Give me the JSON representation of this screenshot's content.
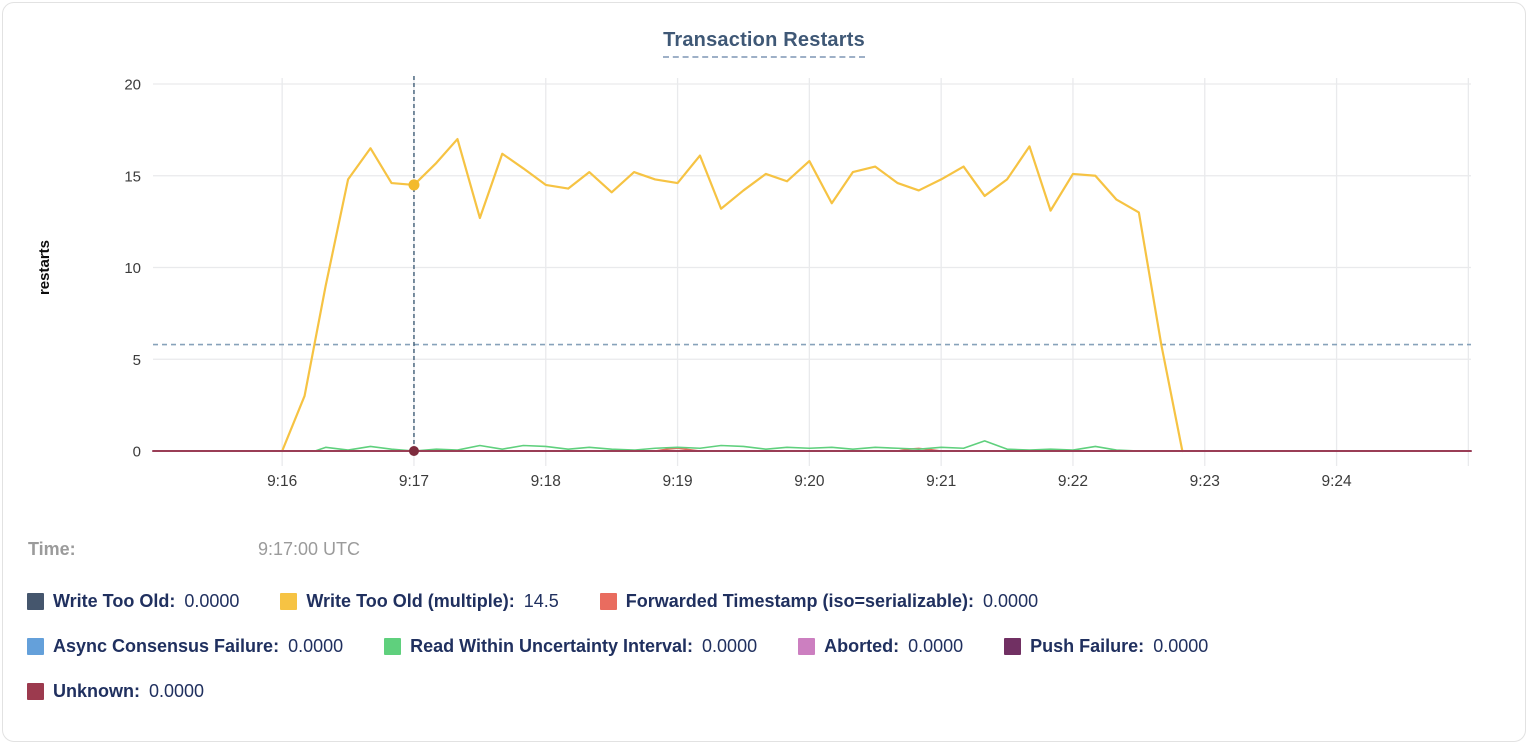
{
  "chart_data": {
    "type": "line",
    "title": "Transaction Restarts",
    "ylabel": "restarts",
    "x_unit": "time of day UTC, expressed as minutes after 9:00",
    "axis": {
      "xlim": [
        15.02,
        25.02
      ],
      "ylim": [
        0,
        20.45
      ],
      "grid": true,
      "legend_position": "bottom",
      "xticks": [
        {
          "x": 16,
          "label": "9:16"
        },
        {
          "x": 17,
          "label": "9:17"
        },
        {
          "x": 18,
          "label": "9:18"
        },
        {
          "x": 19,
          "label": "9:19"
        },
        {
          "x": 20,
          "label": "9:20"
        },
        {
          "x": 21,
          "label": "9:21"
        },
        {
          "x": 22,
          "label": "9:22"
        },
        {
          "x": 23,
          "label": "9:23"
        },
        {
          "x": 24,
          "label": "9:24"
        },
        {
          "x": 25,
          "label": ""
        }
      ],
      "yticks": [
        {
          "y": 0,
          "label": "0"
        },
        {
          "y": 5,
          "label": "5"
        },
        {
          "y": 10,
          "label": "10"
        },
        {
          "y": 15,
          "label": "15"
        },
        {
          "y": 20,
          "label": "20"
        }
      ]
    },
    "threshold_line": {
      "y": 5.8,
      "style": "dashed",
      "color": "#87a2ba"
    },
    "crosshair": {
      "x": 17,
      "time": "9:17:00 UTC",
      "color": "#3f5d77",
      "style": "dashed"
    },
    "highlight_points": [
      {
        "series": "Write Too Old (multiple)",
        "x": 17,
        "y": 14.5,
        "color": "#f3ba2c"
      },
      {
        "series": "Unknown",
        "x": 17,
        "y": 0,
        "color": "#7d2b3d"
      }
    ],
    "series": [
      {
        "name": "Write Too Old",
        "color": "#45566d",
        "width": 1.5,
        "points": [
          [
            15.02,
            0
          ],
          [
            25.02,
            0
          ]
        ]
      },
      {
        "name": "Write Too Old (multiple)",
        "color": "#f6c343",
        "width": 2.2,
        "points": [
          [
            16,
            0
          ],
          [
            16.17,
            3
          ],
          [
            16.33,
            9
          ],
          [
            16.5,
            14.8
          ],
          [
            16.67,
            16.5
          ],
          [
            16.83,
            14.6
          ],
          [
            17,
            14.5
          ],
          [
            17.17,
            15.7
          ],
          [
            17.33,
            17
          ],
          [
            17.5,
            12.7
          ],
          [
            17.67,
            16.2
          ],
          [
            17.83,
            15.4
          ],
          [
            18,
            14.5
          ],
          [
            18.17,
            14.3
          ],
          [
            18.33,
            15.2
          ],
          [
            18.5,
            14.1
          ],
          [
            18.67,
            15.2
          ],
          [
            18.83,
            14.8
          ],
          [
            19,
            14.6
          ],
          [
            19.17,
            16.1
          ],
          [
            19.33,
            13.2
          ],
          [
            19.5,
            14.2
          ],
          [
            19.67,
            15.1
          ],
          [
            19.83,
            14.7
          ],
          [
            20,
            15.8
          ],
          [
            20.17,
            13.5
          ],
          [
            20.33,
            15.2
          ],
          [
            20.5,
            15.5
          ],
          [
            20.67,
            14.6
          ],
          [
            20.83,
            14.2
          ],
          [
            21,
            14.8
          ],
          [
            21.17,
            15.5
          ],
          [
            21.33,
            13.9
          ],
          [
            21.5,
            14.8
          ],
          [
            21.67,
            16.6
          ],
          [
            21.83,
            13.1
          ],
          [
            22,
            15.1
          ],
          [
            22.17,
            15
          ],
          [
            22.33,
            13.7
          ],
          [
            22.5,
            13
          ],
          [
            22.67,
            5.8
          ],
          [
            22.83,
            0
          ]
        ]
      },
      {
        "name": "Forwarded Timestamp (iso=serializable)",
        "color": "#e96c5f",
        "width": 1.6,
        "points": [
          [
            15.02,
            0
          ],
          [
            18.83,
            0
          ],
          [
            18.92,
            0.1
          ],
          [
            19,
            0.15
          ],
          [
            19.08,
            0.08
          ],
          [
            19.17,
            0
          ],
          [
            20.67,
            0
          ],
          [
            20.75,
            0.1
          ],
          [
            20.83,
            0.14
          ],
          [
            20.92,
            0.07
          ],
          [
            21,
            0
          ],
          [
            25.02,
            0
          ]
        ]
      },
      {
        "name": "Async Consensus Failure",
        "color": "#64a0da",
        "width": 1.5,
        "points": [
          [
            15.02,
            0
          ],
          [
            25.02,
            0
          ]
        ]
      },
      {
        "name": "Read Within Uncertainty Interval",
        "color": "#5fd07d",
        "width": 1.6,
        "points": [
          [
            16.25,
            0
          ],
          [
            16.33,
            0.2
          ],
          [
            16.5,
            0.05
          ],
          [
            16.67,
            0.25
          ],
          [
            16.83,
            0.1
          ],
          [
            17,
            0
          ],
          [
            17.17,
            0.1
          ],
          [
            17.33,
            0.05
          ],
          [
            17.5,
            0.3
          ],
          [
            17.67,
            0.1
          ],
          [
            17.83,
            0.3
          ],
          [
            18,
            0.25
          ],
          [
            18.17,
            0.1
          ],
          [
            18.33,
            0.2
          ],
          [
            18.5,
            0.1
          ],
          [
            18.67,
            0.05
          ],
          [
            18.83,
            0.15
          ],
          [
            19,
            0.2
          ],
          [
            19.17,
            0.15
          ],
          [
            19.33,
            0.3
          ],
          [
            19.5,
            0.25
          ],
          [
            19.67,
            0.1
          ],
          [
            19.83,
            0.2
          ],
          [
            20,
            0.15
          ],
          [
            20.17,
            0.2
          ],
          [
            20.33,
            0.1
          ],
          [
            20.5,
            0.2
          ],
          [
            20.67,
            0.15
          ],
          [
            20.83,
            0.1
          ],
          [
            21,
            0.2
          ],
          [
            21.17,
            0.15
          ],
          [
            21.33,
            0.55
          ],
          [
            21.5,
            0.1
          ],
          [
            21.67,
            0.05
          ],
          [
            21.83,
            0.1
          ],
          [
            22,
            0.05
          ],
          [
            22.17,
            0.25
          ],
          [
            22.33,
            0.05
          ],
          [
            22.5,
            0
          ]
        ]
      },
      {
        "name": "Aborted",
        "color": "#cc7fc0",
        "width": 1.5,
        "points": [
          [
            15.02,
            0
          ],
          [
            25.02,
            0
          ]
        ]
      },
      {
        "name": "Push Failure",
        "color": "#713063",
        "width": 1.5,
        "points": [
          [
            15.02,
            0
          ],
          [
            25.02,
            0
          ]
        ]
      },
      {
        "name": "Unknown",
        "color": "#9c3a4e",
        "width": 1.8,
        "points": [
          [
            15.02,
            0
          ],
          [
            25.02,
            0
          ]
        ]
      }
    ]
  },
  "tooltip": {
    "time_label": "Time:",
    "time_value": "9:17:00 UTC",
    "rows": [
      [
        {
          "color": "#45566d",
          "label": "Write Too Old:",
          "value": "0.0000"
        },
        {
          "color": "#f6c343",
          "label": "Write Too Old (multiple):",
          "value": "14.5"
        },
        {
          "color": "#e96c5f",
          "label": "Forwarded Timestamp (iso=serializable):",
          "value": "0.0000"
        }
      ],
      [
        {
          "color": "#64a0da",
          "label": "Async Consensus Failure:",
          "value": "0.0000"
        },
        {
          "color": "#5fd07d",
          "label": "Read Within Uncertainty Interval:",
          "value": "0.0000"
        },
        {
          "color": "#cc7fc0",
          "label": "Aborted:",
          "value": "0.0000"
        },
        {
          "color": "#713063",
          "label": "Push Failure:",
          "value": "0.0000"
        }
      ],
      [
        {
          "color": "#9c3a4e",
          "label": "Unknown:",
          "value": "0.0000"
        }
      ]
    ]
  },
  "colors": {
    "grid": "#e9eaec",
    "tick_text": "#3b3b3b",
    "axis_label_text": "#0d0d0d",
    "title_text": "#3f5876",
    "legend_text": "#20305f",
    "time_text": "#9b9b9b",
    "card_border": "#e2e2e2"
  }
}
